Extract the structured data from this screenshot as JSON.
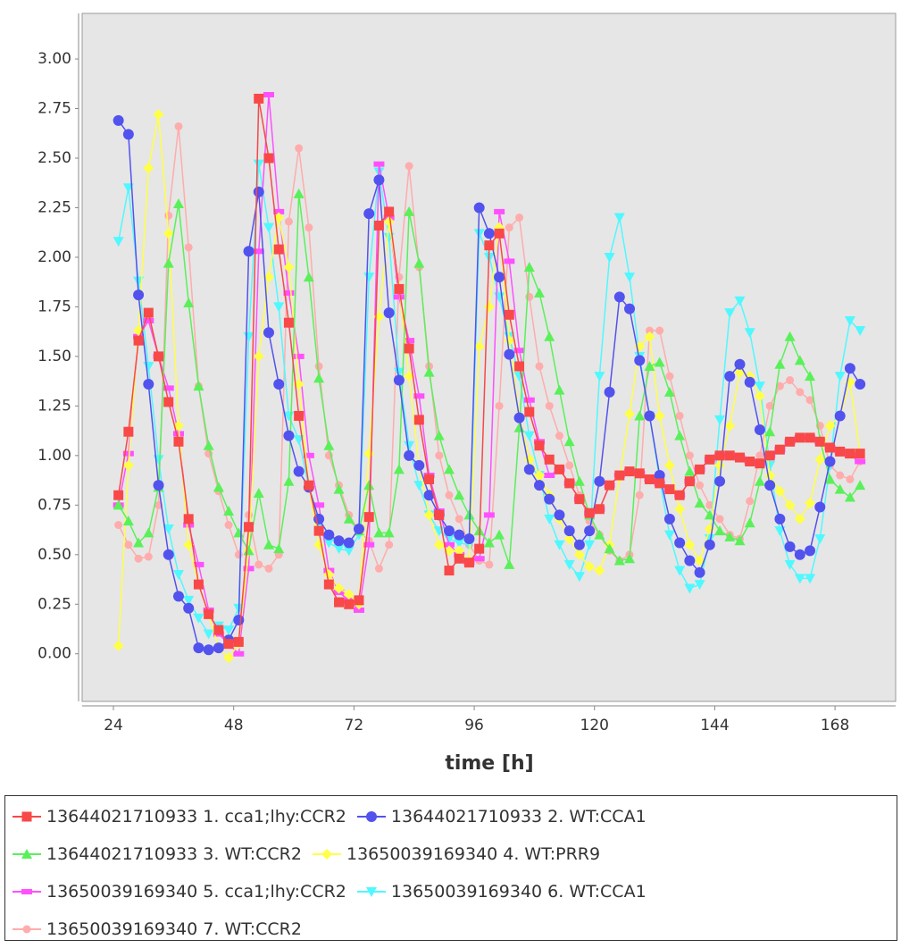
{
  "chart_data": {
    "type": "line",
    "x_label": "time [h]",
    "x": [
      25,
      27,
      29,
      31,
      33,
      35,
      37,
      39,
      41,
      43,
      45,
      47,
      49,
      51,
      53,
      55,
      57,
      59,
      61,
      63,
      65,
      67,
      69,
      71,
      73,
      75,
      77,
      79,
      81,
      83,
      85,
      87,
      89,
      91,
      93,
      95,
      97,
      99,
      101,
      103,
      105,
      107,
      109,
      111,
      113,
      115,
      117,
      119,
      121,
      123,
      125,
      127,
      129,
      131,
      133,
      135,
      137,
      139,
      141,
      143,
      145,
      147,
      149,
      151,
      153,
      155,
      157,
      159,
      161,
      163,
      165,
      167,
      169,
      171,
      173
    ],
    "series": [
      {
        "name": "13644021710933 1. cca1;lhy:CCR2",
        "color": "#f84848",
        "marker": "square",
        "values": [
          0.8,
          1.12,
          1.58,
          1.72,
          1.5,
          1.27,
          1.07,
          0.68,
          0.35,
          0.2,
          0.12,
          0.05,
          0.06,
          0.64,
          2.8,
          2.5,
          2.04,
          1.67,
          1.2,
          0.85,
          0.62,
          0.35,
          0.26,
          0.25,
          0.27,
          0.69,
          2.16,
          2.23,
          1.84,
          1.54,
          1.18,
          0.88,
          0.7,
          0.42,
          0.48,
          0.46,
          0.53,
          2.06,
          2.12,
          1.71,
          1.45,
          1.22,
          1.05,
          0.98,
          0.93,
          0.86,
          0.78,
          0.71,
          0.73,
          0.85,
          0.9,
          0.92,
          0.91,
          0.88,
          0.86,
          0.83,
          0.8,
          0.87,
          0.93,
          0.98,
          1.0,
          1.0,
          0.99,
          0.97,
          0.96,
          1.0,
          1.03,
          1.07,
          1.09,
          1.09,
          1.07,
          1.04,
          1.02,
          1.01,
          1.01
        ]
      },
      {
        "name": "13644021710933 2. WT:CCA1",
        "color": "#5252ee",
        "marker": "circle",
        "values": [
          2.69,
          2.62,
          1.81,
          1.36,
          0.85,
          0.5,
          0.29,
          0.23,
          0.03,
          0.02,
          0.03,
          0.07,
          0.17,
          2.03,
          2.33,
          1.62,
          1.36,
          1.1,
          0.92,
          0.84,
          0.68,
          0.6,
          0.57,
          0.56,
          0.63,
          2.22,
          2.39,
          1.72,
          1.38,
          1.0,
          0.95,
          0.8,
          0.7,
          0.62,
          0.6,
          0.58,
          2.25,
          2.12,
          1.9,
          1.51,
          1.19,
          0.93,
          0.85,
          0.78,
          0.7,
          0.62,
          0.55,
          0.62,
          0.87,
          1.32,
          1.8,
          1.74,
          1.48,
          1.2,
          0.9,
          0.68,
          0.56,
          0.47,
          0.41,
          0.55,
          0.87,
          1.4,
          1.46,
          1.37,
          1.13,
          0.85,
          0.68,
          0.54,
          0.5,
          0.52,
          0.74,
          0.97,
          1.2,
          1.44,
          1.36
        ]
      },
      {
        "name": "13644021710933 3. WT:CCR2",
        "color": "#5af05a",
        "marker": "triangle",
        "values": [
          0.75,
          0.67,
          0.56,
          0.61,
          0.84,
          1.97,
          2.27,
          1.77,
          1.35,
          1.05,
          0.84,
          0.72,
          0.61,
          0.52,
          0.81,
          0.55,
          0.53,
          0.87,
          2.32,
          1.9,
          1.39,
          1.05,
          0.83,
          0.68,
          0.62,
          0.85,
          0.61,
          0.61,
          0.93,
          2.23,
          1.97,
          1.42,
          1.1,
          0.93,
          0.8,
          0.7,
          0.62,
          0.56,
          0.6,
          0.45,
          1.14,
          1.95,
          1.82,
          1.6,
          1.33,
          1.07,
          0.87,
          0.7,
          0.6,
          0.53,
          0.47,
          0.48,
          1.2,
          1.45,
          1.47,
          1.32,
          1.1,
          0.92,
          0.76,
          0.7,
          0.62,
          0.59,
          0.57,
          0.66,
          0.87,
          1.12,
          1.46,
          1.6,
          1.48,
          1.4,
          1.08,
          0.88,
          0.83,
          0.79,
          0.85
        ]
      },
      {
        "name": "13650039169340 4. WT:PRR9",
        "color": "#ffff48",
        "marker": "diamond",
        "values": [
          0.04,
          0.95,
          1.63,
          2.45,
          2.72,
          2.12,
          1.15,
          0.55,
          0.35,
          0.2,
          0.03,
          -0.02,
          0.05,
          0.52,
          1.5,
          1.9,
          2.2,
          1.95,
          1.36,
          0.85,
          0.55,
          0.4,
          0.33,
          0.3,
          0.25,
          1.01,
          1.7,
          2.18,
          1.85,
          1.4,
          0.95,
          0.7,
          0.55,
          0.52,
          0.52,
          0.47,
          1.55,
          1.75,
          2.15,
          1.58,
          1.2,
          0.98,
          0.9,
          0.8,
          0.68,
          0.58,
          0.5,
          0.44,
          0.42,
          0.55,
          0.89,
          1.21,
          1.55,
          1.6,
          1.2,
          0.95,
          0.73,
          0.55,
          0.47,
          0.63,
          0.95,
          1.15,
          1.42,
          1.4,
          1.3,
          0.9,
          0.82,
          0.75,
          0.68,
          0.76,
          0.98,
          1.15,
          1.2,
          1.37,
          1.01
        ]
      },
      {
        "name": "13650039169340 5. cca1;lhy:CCR2",
        "color": "#ff50ff",
        "marker": "bar",
        "values": [
          0.75,
          1.01,
          1.6,
          1.68,
          1.5,
          1.34,
          1.11,
          0.65,
          0.45,
          0.22,
          0.1,
          0.05,
          0.0,
          0.43,
          2.03,
          2.82,
          2.23,
          1.82,
          1.5,
          1.0,
          0.75,
          0.42,
          0.31,
          0.27,
          0.22,
          0.55,
          2.47,
          2.2,
          1.8,
          1.58,
          1.3,
          0.9,
          0.72,
          0.55,
          0.5,
          0.46,
          0.48,
          0.7,
          2.23,
          1.98,
          1.53,
          1.28,
          1.07,
          0.9,
          0.93,
          0.86,
          0.78,
          0.71,
          0.73,
          0.85,
          0.9,
          0.92,
          0.91,
          0.88,
          0.86,
          0.83,
          0.8,
          0.87,
          0.93,
          0.98,
          1.0,
          1.0,
          0.99,
          0.97,
          0.96,
          1.0,
          1.03,
          1.07,
          1.09,
          1.09,
          1.07,
          1.04,
          1.02,
          1.0,
          0.97
        ]
      },
      {
        "name": "13650039169340 6. WT:CCA1",
        "color": "#50f8ff",
        "marker": "triangle-down",
        "values": [
          2.08,
          2.35,
          1.88,
          1.45,
          0.98,
          0.63,
          0.4,
          0.27,
          0.18,
          0.1,
          0.14,
          0.12,
          0.23,
          1.6,
          2.47,
          2.15,
          1.75,
          1.2,
          1.08,
          0.84,
          0.65,
          0.56,
          0.53,
          0.52,
          0.6,
          1.9,
          2.43,
          2.1,
          1.42,
          1.05,
          0.85,
          0.7,
          0.62,
          0.58,
          0.56,
          0.55,
          2.12,
          2.0,
          1.8,
          1.6,
          1.4,
          1.1,
          0.9,
          0.68,
          0.55,
          0.45,
          0.39,
          0.55,
          1.4,
          2.0,
          2.2,
          1.9,
          1.5,
          1.2,
          0.88,
          0.6,
          0.42,
          0.33,
          0.35,
          0.58,
          1.18,
          1.72,
          1.78,
          1.62,
          1.35,
          0.95,
          0.62,
          0.45,
          0.38,
          0.38,
          0.58,
          0.95,
          1.4,
          1.68,
          1.63
        ]
      },
      {
        "name": "13650039169340 7. WT:CCR2",
        "color": "#ffacac",
        "marker": "small-circle",
        "values": [
          0.65,
          0.55,
          0.48,
          0.49,
          0.75,
          2.21,
          2.66,
          2.05,
          1.35,
          1.01,
          0.82,
          0.65,
          0.5,
          0.7,
          0.45,
          0.43,
          0.5,
          2.18,
          2.55,
          2.15,
          1.45,
          1.0,
          0.85,
          0.7,
          0.62,
          0.57,
          0.43,
          0.55,
          1.9,
          2.46,
          1.95,
          1.45,
          1.0,
          0.8,
          0.68,
          0.55,
          0.47,
          0.45,
          1.25,
          2.15,
          2.2,
          1.8,
          1.45,
          1.25,
          1.1,
          0.95,
          0.8,
          0.67,
          0.6,
          0.52,
          0.47,
          0.5,
          0.8,
          1.63,
          1.63,
          1.4,
          1.2,
          1.0,
          0.85,
          0.75,
          0.68,
          0.6,
          0.58,
          0.77,
          1.0,
          1.25,
          1.35,
          1.38,
          1.32,
          1.28,
          1.15,
          0.95,
          0.9,
          0.88,
          0.97
        ]
      }
    ],
    "xlim": [
      17.76,
      180.1
    ],
    "ylim": [
      -0.24,
      3.23
    ],
    "xticks": [
      24,
      48,
      72,
      96,
      120,
      144,
      168
    ],
    "yticks": [
      {
        "value": 0,
        "label": "0.00"
      },
      {
        "value": 0.25,
        "label": "0.25"
      },
      {
        "value": 0.5,
        "label": "0.50"
      },
      {
        "value": 0.75,
        "label": "0.75"
      },
      {
        "value": 1,
        "label": "1.00"
      },
      {
        "value": 1.25,
        "label": "1.25"
      },
      {
        "value": 1.5,
        "label": "1.50"
      },
      {
        "value": 1.75,
        "label": "1.75"
      },
      {
        "value": 2,
        "label": "2.00"
      },
      {
        "value": 2.25,
        "label": "2.25"
      },
      {
        "value": 2.5,
        "label": "2.50"
      },
      {
        "value": 2.75,
        "label": "2.75"
      },
      {
        "value": 3,
        "label": "3.00"
      }
    ],
    "legend": "bottom"
  }
}
